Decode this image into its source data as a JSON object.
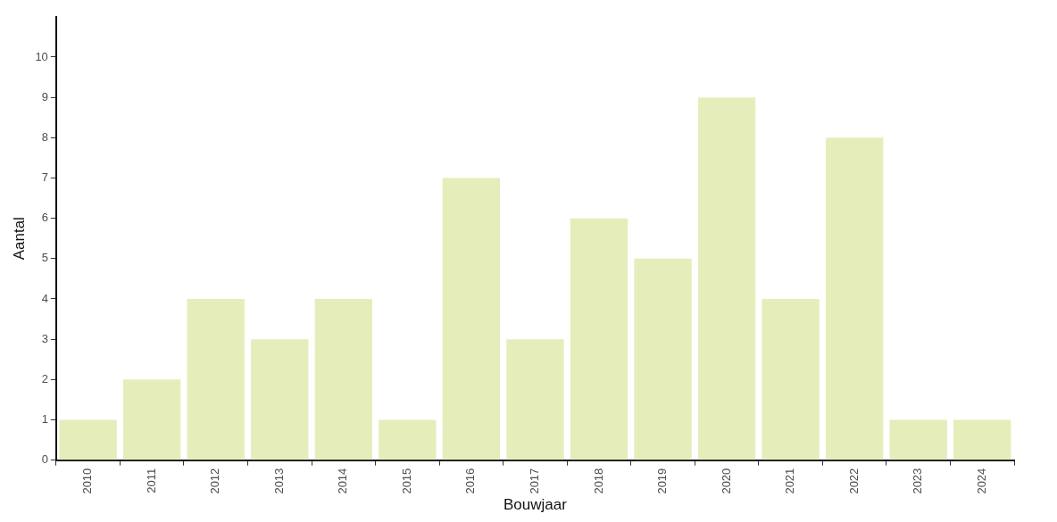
{
  "chart_data": {
    "type": "bar",
    "xlabel": "Bouwjaar",
    "ylabel": "Aantal",
    "categories": [
      "2010",
      "2011",
      "2012",
      "2013",
      "2014",
      "2015",
      "2016",
      "2017",
      "2018",
      "2019",
      "2020",
      "2021",
      "2022",
      "2023",
      "2024"
    ],
    "values": [
      1,
      2,
      4,
      3,
      4,
      1,
      7,
      3,
      6,
      5,
      9,
      4,
      8,
      1,
      1
    ],
    "color": "#e5eebb",
    "ylim": [
      0,
      11
    ],
    "yticks": [
      0,
      1,
      2,
      3,
      4,
      5,
      6,
      7,
      8,
      9,
      10
    ]
  }
}
